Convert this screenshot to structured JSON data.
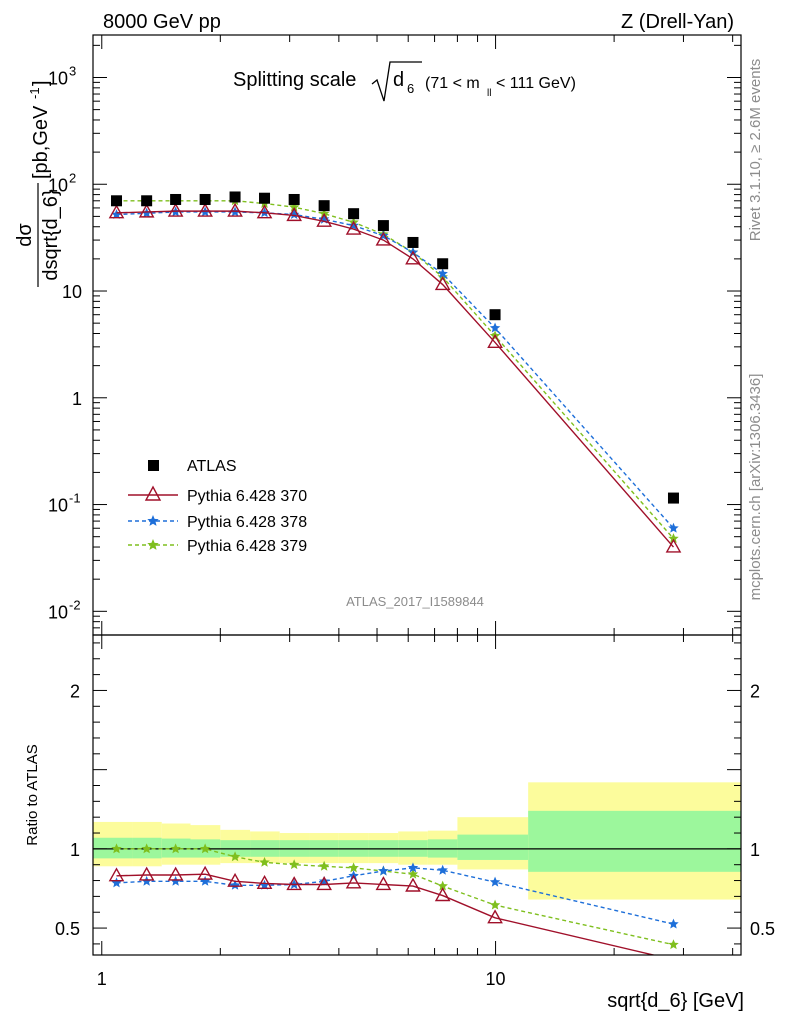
{
  "header": {
    "left": "8000 GeV pp",
    "right": "Z (Drell-Yan)"
  },
  "side_labels": {
    "rivet": "Rivet 3.1.10, ≥ 2.6M events",
    "mcplots": "mcplots.cern.ch [arXiv:1306.3436]"
  },
  "watermark": "ATLAS_2017_I1589844",
  "plot_title": {
    "main": "Splitting scale",
    "sqrt_sym": "d",
    "sqrt_sub": "6",
    "range": "(71 < m",
    "range_sub": "ll",
    "range_end": " < 111 GeV)"
  },
  "colors": {
    "atlas": "#000000",
    "p370": "#a0102a",
    "p378": "#1e6fd9",
    "p379": "#7fbf1e",
    "band_inner": "#9cf79c",
    "band_outer": "#fcfc9c"
  },
  "chart_data": [
    {
      "type": "scatter",
      "panel": "main",
      "ylabel": "dσ/dsqrt{d_6} [pb,GeV⁻¹]",
      "ylabel_parts": {
        "num": "dσ",
        "den": "dsqrt{d_6}",
        "unit": "[pb,GeV",
        "unit_sup": "-1",
        "unit_end": "]"
      },
      "xscale": "log",
      "yscale": "log",
      "xlim": [
        0.95,
        42
      ],
      "ylim": [
        0.006,
        2500
      ],
      "yticks": [
        {
          "v": 0.01,
          "base": "10",
          "exp": "-2"
        },
        {
          "v": 0.1,
          "base": "10",
          "exp": "-1"
        },
        {
          "v": 1,
          "base": "1",
          "exp": ""
        },
        {
          "v": 10,
          "base": "10",
          "exp": ""
        },
        {
          "v": 100,
          "base": "10",
          "exp": "2"
        },
        {
          "v": 1000,
          "base": "10",
          "exp": "3"
        }
      ],
      "legend": [
        "ATLAS",
        "Pythia 6.428 370",
        "Pythia 6.428 378",
        "Pythia 6.428 379"
      ],
      "x": [
        1.09,
        1.3,
        1.54,
        1.83,
        2.18,
        2.59,
        3.08,
        3.67,
        4.36,
        5.19,
        6.17,
        7.34,
        9.97,
        28.3
      ],
      "series": [
        {
          "name": "ATLAS",
          "values": [
            70,
            70,
            72,
            72,
            76,
            74,
            72,
            63,
            53,
            41,
            28.5,
            18,
            6.0,
            0.115
          ]
        },
        {
          "name": "Pythia 6.428 370",
          "values": [
            54,
            55,
            56,
            56,
            56,
            54,
            51,
            45,
            38,
            30,
            20,
            11.5,
            3.3,
            0.04
          ]
        },
        {
          "name": "Pythia 6.428 378",
          "values": [
            52,
            53.5,
            55,
            55,
            55,
            54,
            52,
            47,
            41,
            33,
            23,
            14.5,
            4.5,
            0.06
          ]
        },
        {
          "name": "Pythia 6.428 379",
          "values": [
            70,
            70,
            70,
            70,
            70,
            66,
            61,
            53,
            44,
            34,
            23,
            13.5,
            3.8,
            0.048
          ]
        }
      ]
    },
    {
      "type": "line",
      "panel": "ratio",
      "ylabel": "Ratio to ATLAS",
      "xlabel": "sqrt{d_6} [GeV]",
      "xscale": "log",
      "xlim": [
        0.95,
        42
      ],
      "ylim": [
        0.33,
        2.35
      ],
      "yticks": [
        0.5,
        1,
        2
      ],
      "xticks": [
        1,
        10
      ],
      "x": [
        1.09,
        1.3,
        1.54,
        1.83,
        2.18,
        2.59,
        3.08,
        3.67,
        4.36,
        5.19,
        6.17,
        7.34,
        9.97,
        28.3
      ],
      "series": [
        {
          "name": "Pythia 6.428 370",
          "values": [
            0.83,
            0.835,
            0.835,
            0.84,
            0.795,
            0.782,
            0.775,
            0.775,
            0.785,
            0.775,
            0.765,
            0.705,
            0.565,
            0.3
          ]
        },
        {
          "name": "Pythia 6.428 378",
          "values": [
            0.785,
            0.795,
            0.795,
            0.795,
            0.77,
            0.77,
            0.775,
            0.795,
            0.83,
            0.86,
            0.88,
            0.865,
            0.79,
            0.525
          ]
        },
        {
          "name": "Pythia 6.428 379",
          "values": [
            1.0,
            1.0,
            1.0,
            1.0,
            0.95,
            0.915,
            0.9,
            0.89,
            0.88,
            0.86,
            0.84,
            0.765,
            0.645,
            0.395
          ]
        }
      ],
      "band_edges": [
        0.95,
        1.2,
        1.42,
        1.68,
        2.0,
        2.38,
        2.83,
        3.37,
        4.0,
        4.76,
        5.66,
        6.73,
        8.0,
        12.1,
        42
      ],
      "band_inner": [
        [
          0.94,
          1.07
        ],
        [
          0.94,
          1.07
        ],
        [
          0.945,
          1.065
        ],
        [
          0.945,
          1.06
        ],
        [
          0.95,
          1.055
        ],
        [
          0.95,
          1.055
        ],
        [
          0.95,
          1.055
        ],
        [
          0.95,
          1.055
        ],
        [
          0.95,
          1.055
        ],
        [
          0.95,
          1.055
        ],
        [
          0.95,
          1.055
        ],
        [
          0.945,
          1.06
        ],
        [
          0.93,
          1.09
        ],
        [
          0.855,
          1.24
        ]
      ],
      "band_outer": [
        [
          0.89,
          1.17
        ],
        [
          0.89,
          1.17
        ],
        [
          0.9,
          1.16
        ],
        [
          0.9,
          1.15
        ],
        [
          0.91,
          1.12
        ],
        [
          0.91,
          1.11
        ],
        [
          0.91,
          1.1
        ],
        [
          0.91,
          1.1
        ],
        [
          0.91,
          1.1
        ],
        [
          0.91,
          1.1
        ],
        [
          0.9,
          1.11
        ],
        [
          0.9,
          1.115
        ],
        [
          0.87,
          1.2
        ],
        [
          0.68,
          1.42
        ]
      ]
    }
  ]
}
